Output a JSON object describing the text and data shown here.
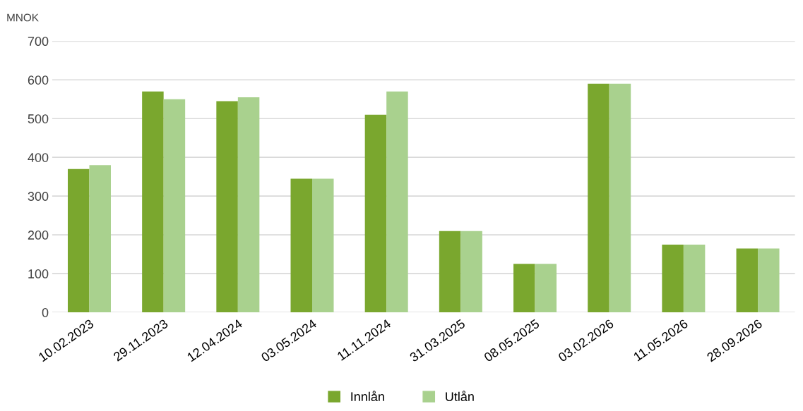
{
  "chart_data": {
    "type": "bar",
    "ylabel": "MNOK",
    "categories": [
      "10.02.2023",
      "29.11.2023",
      "12.04.2024",
      "03.05.2024",
      "11.11.2024",
      "31.03.2025",
      "08.05.2025",
      "03.02.2026",
      "11.05.2026",
      "28.09.2026"
    ],
    "series": [
      {
        "name": "Innlån",
        "color": "#7aa72e",
        "values": [
          370,
          570,
          545,
          345,
          510,
          210,
          125,
          590,
          175,
          165
        ]
      },
      {
        "name": "Utlån",
        "color": "#a9d18e",
        "values": [
          380,
          550,
          555,
          345,
          570,
          210,
          125,
          590,
          175,
          165
        ]
      }
    ],
    "ylim": [
      0,
      700
    ],
    "yticks": [
      0,
      100,
      200,
      300,
      400,
      500,
      600,
      700
    ],
    "grid": "y",
    "legend": "bottom"
  }
}
